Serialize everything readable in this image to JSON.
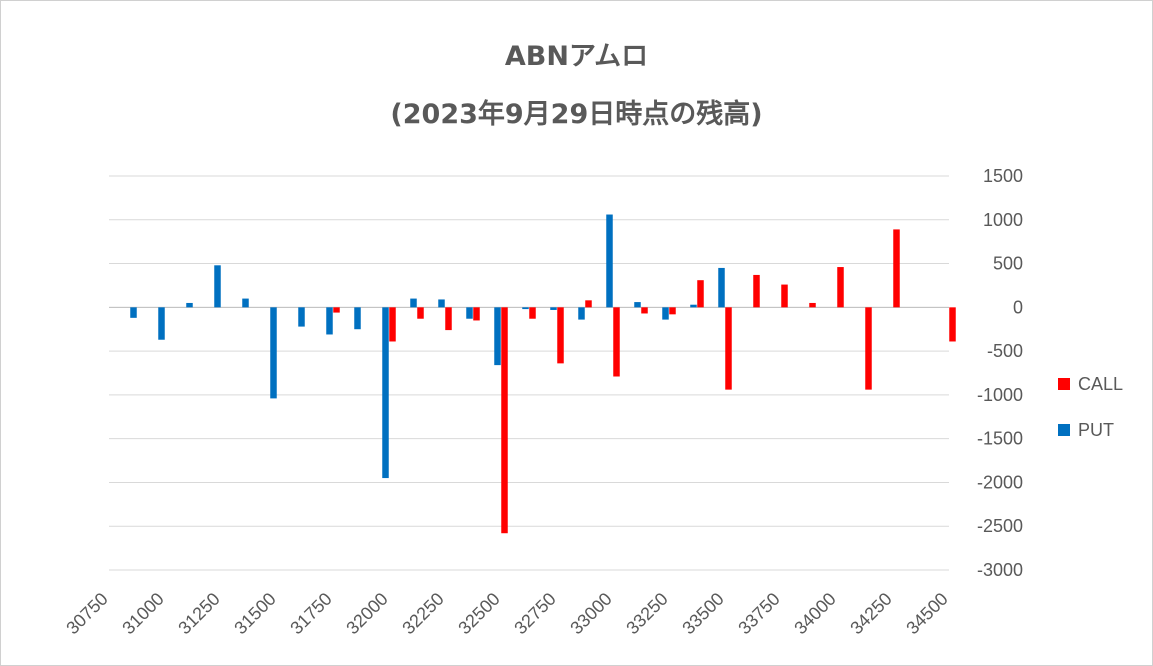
{
  "chart_data": {
    "type": "bar",
    "title": "ABNアムロ",
    "subtitle": "(2023年9月29日時点の残高)",
    "x_tick_labels": [
      "30750",
      "31000",
      "31250",
      "31500",
      "31750",
      "32000",
      "32250",
      "32500",
      "32750",
      "33000",
      "33250",
      "33500",
      "33750",
      "34000",
      "34250",
      "34500"
    ],
    "y_tick_labels": [
      "1500",
      "1000",
      "500",
      "0",
      "-500",
      "-1000",
      "-1500",
      "-2000",
      "-2500",
      "-3000"
    ],
    "ylim": [
      -3000,
      1500
    ],
    "y_axis_position": "right",
    "grid": true,
    "legend_position": "right",
    "strikes": [
      30875,
      31000,
      31125,
      31250,
      31375,
      31500,
      31625,
      31750,
      31875,
      32000,
      32125,
      32250,
      32375,
      32500,
      32625,
      32750,
      32875,
      33000,
      33125,
      33250,
      33375,
      33500,
      33625,
      33750,
      33875,
      34000,
      34125,
      34250,
      34375,
      34500
    ],
    "series": [
      {
        "name": "CALL",
        "color": "#ff0000",
        "values": [
          0,
          0,
          0,
          0,
          0,
          0,
          0,
          -60,
          0,
          -390,
          -130,
          -260,
          -150,
          -2580,
          -130,
          -640,
          80,
          -790,
          -70,
          -80,
          310,
          -940,
          370,
          260,
          50,
          460,
          -940,
          890,
          0,
          -390
        ]
      },
      {
        "name": "PUT",
        "color": "#0070c0",
        "values": [
          -120,
          -370,
          50,
          480,
          100,
          -1040,
          -220,
          -310,
          -250,
          -1950,
          100,
          90,
          -130,
          -660,
          -20,
          -30,
          -140,
          1060,
          60,
          -140,
          30,
          450,
          0,
          0,
          0,
          0,
          0,
          0,
          0,
          0
        ]
      }
    ]
  }
}
